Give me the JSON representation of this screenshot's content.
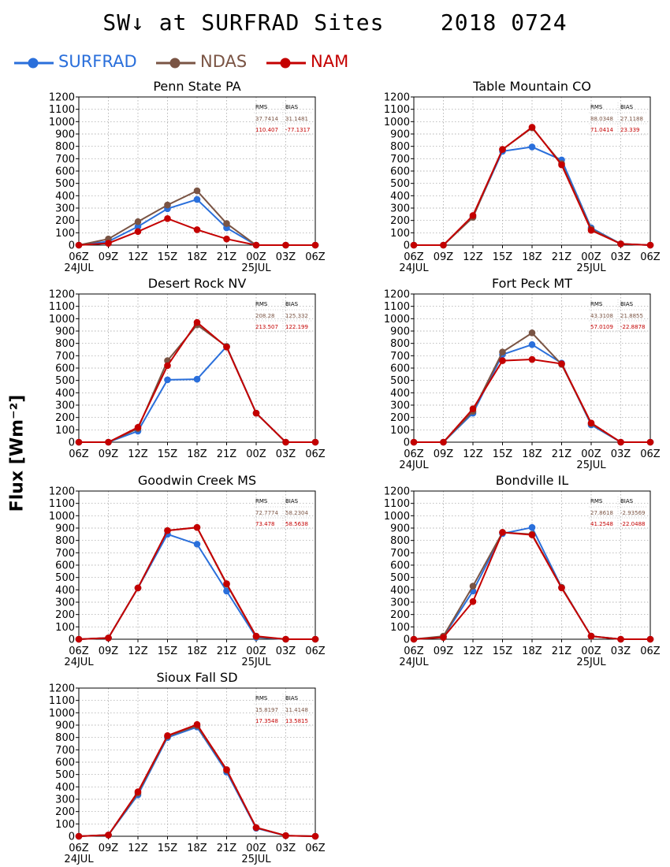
{
  "figure": {
    "title": "SW↓ at SURFRAD Sites    2018 0724",
    "ylabel": "Flux [Wm⁻²]"
  },
  "legend": [
    {
      "name": "SURFRAD",
      "color": "#2a6fdb"
    },
    {
      "name": "NDAS",
      "color": "#7a5444"
    },
    {
      "name": "NAM",
      "color": "#c40000"
    }
  ],
  "stats_header": {
    "rms": "RMS",
    "bias": "BIAS"
  },
  "axis": {
    "x_ticks": [
      "06Z",
      "09Z",
      "12Z",
      "15Z",
      "18Z",
      "21Z",
      "00Z",
      "03Z",
      "06Z"
    ],
    "date_labels": [
      "24JUL",
      "25JUL"
    ],
    "ylim": [
      0,
      1200
    ],
    "y_ticks": [
      0,
      100,
      200,
      300,
      400,
      500,
      600,
      700,
      800,
      900,
      1000,
      1100,
      1200
    ],
    "grid": true
  },
  "chart_data": [
    {
      "type": "line",
      "title": "Penn State PA",
      "show_date_labels": true,
      "stats": {
        "ndas": {
          "rms": "37.7414",
          "bias": "31.1481"
        },
        "nam": {
          "rms": "110.407",
          "bias": "-77.1317"
        }
      },
      "series": [
        {
          "name": "SURFRAD",
          "values": [
            0,
            30,
            150,
            295,
            370,
            140,
            0,
            0,
            0
          ]
        },
        {
          "name": "NDAS",
          "values": [
            0,
            50,
            190,
            325,
            440,
            175,
            0,
            0,
            0
          ]
        },
        {
          "name": "NAM",
          "values": [
            0,
            15,
            110,
            215,
            125,
            50,
            0,
            0,
            0
          ]
        }
      ]
    },
    {
      "type": "line",
      "title": "Table Mountain CO",
      "show_date_labels": true,
      "stats": {
        "ndas": {
          "rms": "88.0348",
          "bias": "27.1188"
        },
        "nam": {
          "rms": "71.0414",
          "bias": "23.339"
        }
      },
      "series": [
        {
          "name": "SURFRAD",
          "values": [
            0,
            0,
            230,
            760,
            795,
            690,
            140,
            10,
            0
          ]
        },
        {
          "name": "NDAS",
          "values": [
            0,
            0,
            225,
            775,
            950,
            660,
            130,
            10,
            0
          ]
        },
        {
          "name": "NAM",
          "values": [
            0,
            0,
            240,
            775,
            955,
            650,
            120,
            10,
            0
          ]
        }
      ]
    },
    {
      "type": "line",
      "title": "Desert Rock NV",
      "show_date_labels": false,
      "stats": {
        "ndas": {
          "rms": "208.28",
          "bias": "125.332"
        },
        "nam": {
          "rms": "213.507",
          "bias": "122.199"
        }
      },
      "series": [
        {
          "name": "SURFRAD",
          "values": [
            0,
            0,
            90,
            505,
            510,
            775,
            235,
            0,
            0
          ]
        },
        {
          "name": "NDAS",
          "values": [
            0,
            0,
            110,
            660,
            950,
            775,
            235,
            0,
            0
          ]
        },
        {
          "name": "NAM",
          "values": [
            0,
            0,
            120,
            620,
            970,
            770,
            235,
            0,
            0
          ]
        }
      ]
    },
    {
      "type": "line",
      "title": "Fort Peck MT",
      "show_date_labels": true,
      "stats": {
        "ndas": {
          "rms": "43.3108",
          "bias": "21.8855"
        },
        "nam": {
          "rms": "57.0109",
          "bias": "-22.8878"
        }
      },
      "series": [
        {
          "name": "SURFRAD",
          "values": [
            0,
            0,
            235,
            710,
            790,
            640,
            140,
            0,
            0
          ]
        },
        {
          "name": "NDAS",
          "values": [
            0,
            0,
            250,
            730,
            885,
            630,
            150,
            0,
            0
          ]
        },
        {
          "name": "NAM",
          "values": [
            0,
            0,
            270,
            660,
            670,
            635,
            155,
            0,
            0
          ]
        }
      ]
    },
    {
      "type": "line",
      "title": "Goodwin Creek MS",
      "show_date_labels": true,
      "stats": {
        "ndas": {
          "rms": "72.7774",
          "bias": "58.2304"
        },
        "nam": {
          "rms": "73.478",
          "bias": "58.5638"
        }
      },
      "series": [
        {
          "name": "SURFRAD",
          "values": [
            0,
            10,
            415,
            850,
            770,
            390,
            15,
            0,
            0
          ]
        },
        {
          "name": "NDAS",
          "values": [
            0,
            10,
            415,
            880,
            905,
            445,
            20,
            0,
            0
          ]
        },
        {
          "name": "NAM",
          "values": [
            0,
            10,
            415,
            880,
            905,
            450,
            25,
            0,
            0
          ]
        }
      ]
    },
    {
      "type": "line",
      "title": "Bondville IL",
      "show_date_labels": true,
      "stats": {
        "ndas": {
          "rms": "27.8618",
          "bias": "-2.93569"
        },
        "nam": {
          "rms": "41.2548",
          "bias": "-22.0488"
        }
      },
      "series": [
        {
          "name": "SURFRAD",
          "values": [
            0,
            20,
            390,
            855,
            905,
            420,
            25,
            0,
            0
          ]
        },
        {
          "name": "NDAS",
          "values": [
            0,
            25,
            430,
            865,
            850,
            420,
            25,
            0,
            0
          ]
        },
        {
          "name": "NAM",
          "values": [
            0,
            15,
            305,
            865,
            845,
            415,
            25,
            0,
            0
          ]
        }
      ]
    },
    {
      "type": "line",
      "title": "Sioux Fall SD",
      "show_date_labels": true,
      "stats": {
        "ndas": {
          "rms": "15.8197",
          "bias": "11.4148"
        },
        "nam": {
          "rms": "17.3548",
          "bias": "13.5815"
        }
      },
      "series": [
        {
          "name": "SURFRAD",
          "values": [
            0,
            10,
            335,
            800,
            885,
            520,
            65,
            5,
            0
          ]
        },
        {
          "name": "NDAS",
          "values": [
            0,
            10,
            350,
            810,
            895,
            535,
            70,
            5,
            0
          ]
        },
        {
          "name": "NAM",
          "values": [
            0,
            10,
            360,
            815,
            905,
            540,
            70,
            5,
            0
          ]
        }
      ]
    }
  ]
}
